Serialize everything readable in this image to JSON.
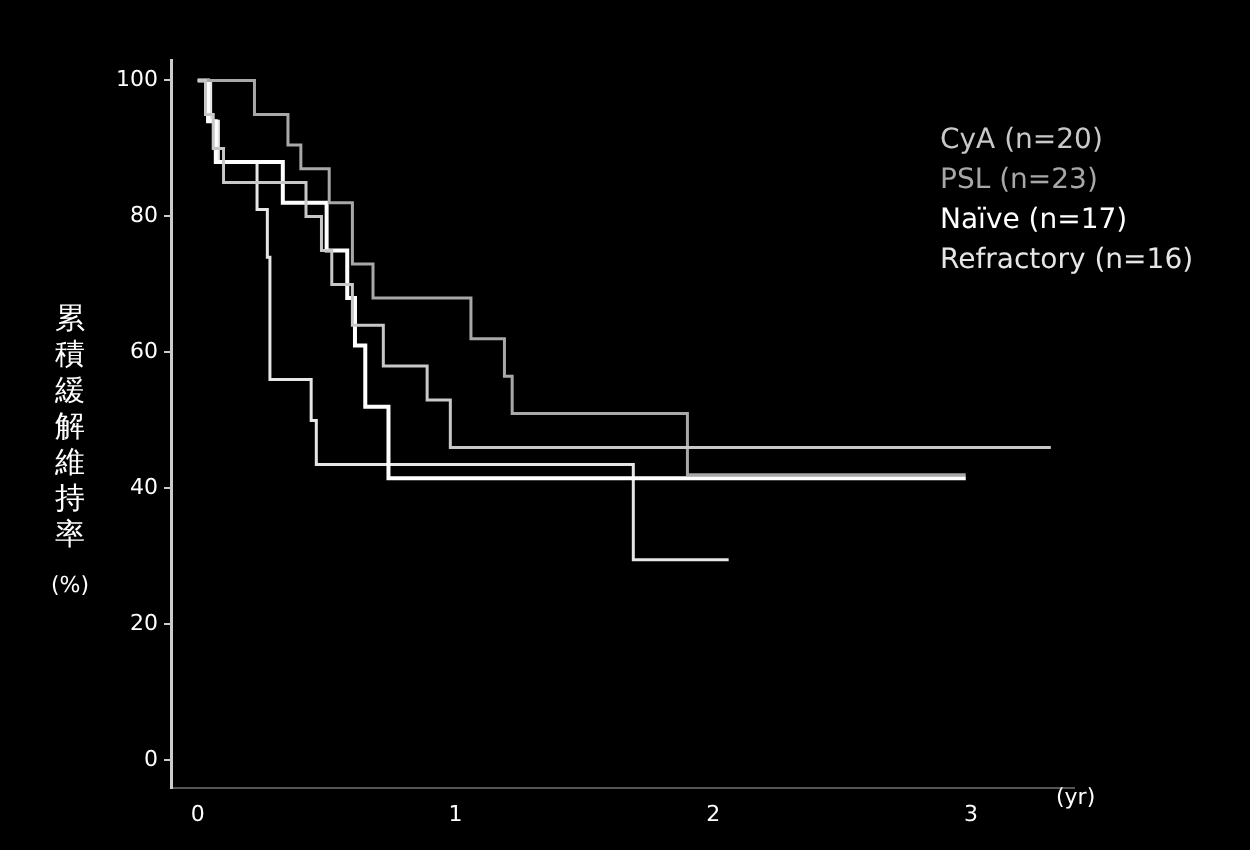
{
  "chart_data": {
    "type": "step",
    "xlabel": "(yr)",
    "ylabel": "累積緩解維持率 (%)",
    "xlim": [
      -0.1,
      3.4
    ],
    "ylim": [
      -4,
      103
    ],
    "xticks": [
      0,
      1,
      2,
      3
    ],
    "yticks": [
      0,
      20,
      40,
      60,
      80,
      100
    ],
    "grid": false,
    "legend": "top right",
    "marker": "none",
    "series": [
      {
        "name": "CyA (n=20)",
        "color": "#c8c8c8",
        "x": [
          0,
          0.03,
          0.06,
          0.1,
          0.42,
          0.48,
          0.52,
          0.6,
          0.72,
          0.89,
          0.98,
          3.31
        ],
        "values": [
          100,
          95,
          90,
          85,
          80,
          75,
          70,
          64,
          58,
          53,
          46,
          46
        ]
      },
      {
        "name": "PSL (n=23)",
        "color": "#a8a8a8",
        "x": [
          0,
          0.22,
          0.35,
          0.4,
          0.51,
          0.6,
          0.68,
          1.06,
          1.19,
          1.22,
          1.9,
          2.98
        ],
        "values": [
          100,
          95,
          90.5,
          87,
          82,
          73,
          68,
          62,
          56.5,
          51,
          42,
          42
        ]
      },
      {
        "name": "Naïve (n=17)",
        "color": "#ffffff",
        "x": [
          0,
          0.04,
          0.07,
          0.33,
          0.5,
          0.58,
          0.61,
          0.65,
          0.74,
          2.98
        ],
        "values": [
          100,
          94,
          88,
          82,
          75,
          68,
          61,
          52,
          41.5,
          41.5
        ]
      },
      {
        "name": "Refractory (n=16)",
        "color": "#e6e6e6",
        "x": [
          0,
          0.05,
          0.08,
          0.23,
          0.27,
          0.28,
          0.44,
          0.46,
          1.69,
          2.06
        ],
        "values": [
          100,
          94,
          88,
          81,
          74,
          56,
          50,
          43.5,
          29.5,
          29.5
        ]
      }
    ]
  }
}
